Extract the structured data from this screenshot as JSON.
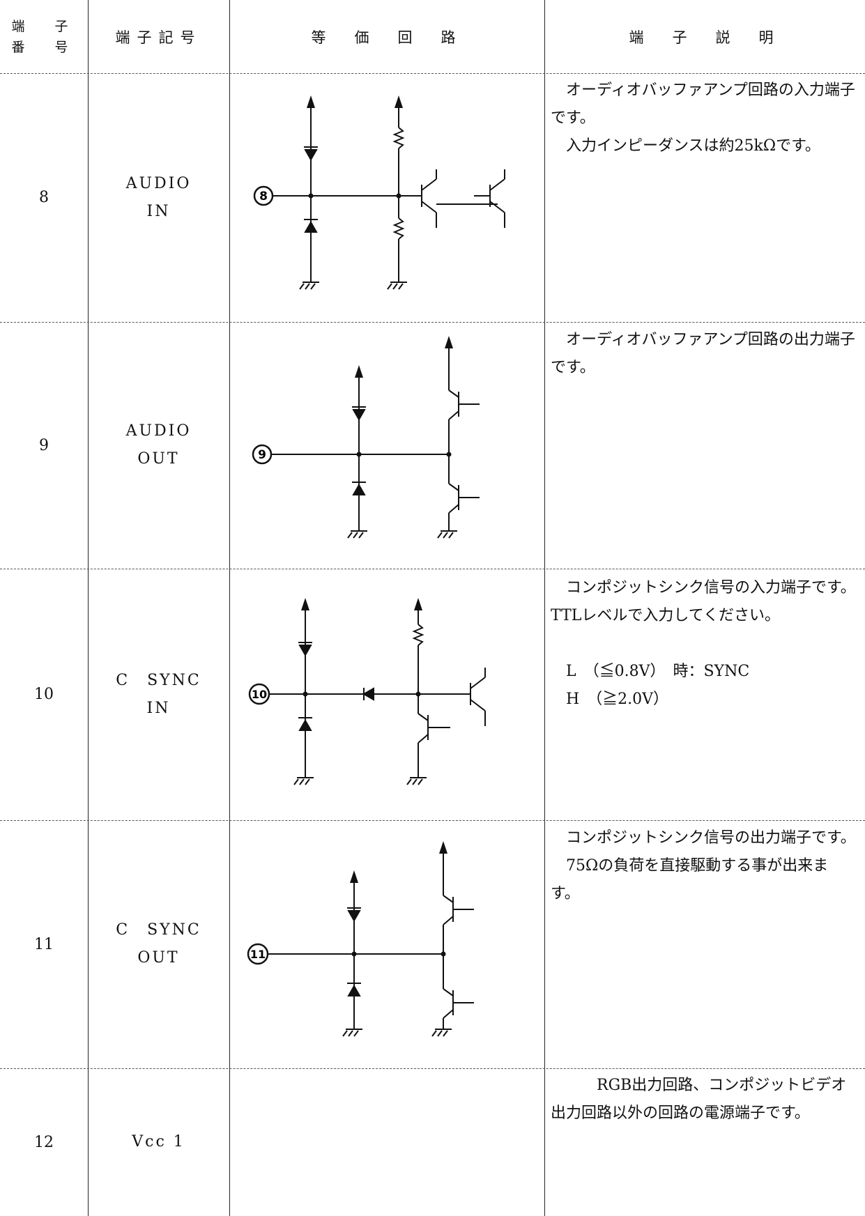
{
  "header": {
    "num": [
      "端　子",
      "番　号"
    ],
    "symbol": "端子記号",
    "circuit": "等　価　回　路",
    "description": "端　子　説　明"
  },
  "rows": [
    {
      "num": "8",
      "symbol": [
        "AUDIO",
        "IN"
      ],
      "pin_label": "8",
      "desc": [
        "　オーディオバッファアンプ回路の入力端子です。",
        "　入力インピーダンスは約25kΩです。"
      ]
    },
    {
      "num": "9",
      "symbol": [
        "AUDIO",
        "OUT"
      ],
      "pin_label": "9",
      "desc": [
        "　オーディオバッファアンプ回路の出力端子です。"
      ]
    },
    {
      "num": "10",
      "symbol": [
        "C　SYNC",
        "IN"
      ],
      "pin_label": "10",
      "desc": [
        "　コンポジットシンク信号の入力端子です。TTLレベルで入力してください。",
        "",
        "　L　（≦0.8V）　時：SYNC",
        "　H　（≧2.0V）"
      ]
    },
    {
      "num": "11",
      "symbol": [
        "C　SYNC",
        "OUT"
      ],
      "pin_label": "11",
      "desc": [
        "　コンポジットシンク信号の出力端子です。",
        "　75Ωの負荷を直接駆動する事が出来ます。"
      ]
    },
    {
      "num": "12",
      "symbol": [
        "Vcc 1"
      ],
      "desc": [
        "　　　RGB出力回路、コンポジットビデオ出力回路以外の回路の電源端子です。"
      ]
    }
  ]
}
